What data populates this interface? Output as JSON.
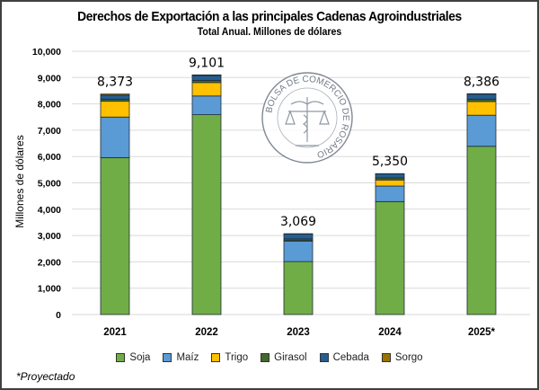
{
  "chart_data": {
    "type": "bar",
    "stacked": true,
    "title": "Derechos de Exportación a las principales Cadenas Agroindustriales",
    "subtitle": "Total Anual. Millones de dólares",
    "xlabel": "",
    "ylabel": "Millones de dólares",
    "ylim": [
      0,
      10000
    ],
    "yticks": [
      0,
      1000,
      2000,
      3000,
      4000,
      5000,
      6000,
      7000,
      8000,
      9000,
      10000
    ],
    "ytick_labels": [
      "0",
      "1,000",
      "2,000",
      "3,000",
      "4,000",
      "5,000",
      "6,000",
      "7,000",
      "8,000",
      "9,000",
      "10,000"
    ],
    "grid": true,
    "legend_position": "bottom",
    "categories": [
      "2021",
      "2022",
      "2023",
      "2024",
      "2025*"
    ],
    "totals": [
      8373,
      9101,
      3069,
      5350,
      8386
    ],
    "total_labels": [
      "8,373",
      "9,101",
      "3,069",
      "5,350",
      "8,386"
    ],
    "series": [
      {
        "name": "Soja",
        "color": "#70AD47",
        "values": [
          5960,
          7590,
          2010,
          4290,
          6390
        ]
      },
      {
        "name": "Maíz",
        "color": "#5B9BD5",
        "values": [
          1540,
          710,
          780,
          590,
          1180
        ]
      },
      {
        "name": "Trigo",
        "color": "#FFC000",
        "values": [
          600,
          510,
          20,
          230,
          520
        ]
      },
      {
        "name": "Girasol",
        "color": "#43682B",
        "values": [
          80,
          80,
          60,
          80,
          90
        ]
      },
      {
        "name": "Cebada",
        "color": "#255E91",
        "values": [
          150,
          190,
          190,
          150,
          190
        ]
      },
      {
        "name": "Sorgo",
        "color": "#997300",
        "values": [
          43,
          21,
          9,
          10,
          16
        ]
      }
    ]
  },
  "watermark": {
    "text": "BOLSA DE COMERCIO DE ROSARIO"
  },
  "footnote": "*Proyectado"
}
